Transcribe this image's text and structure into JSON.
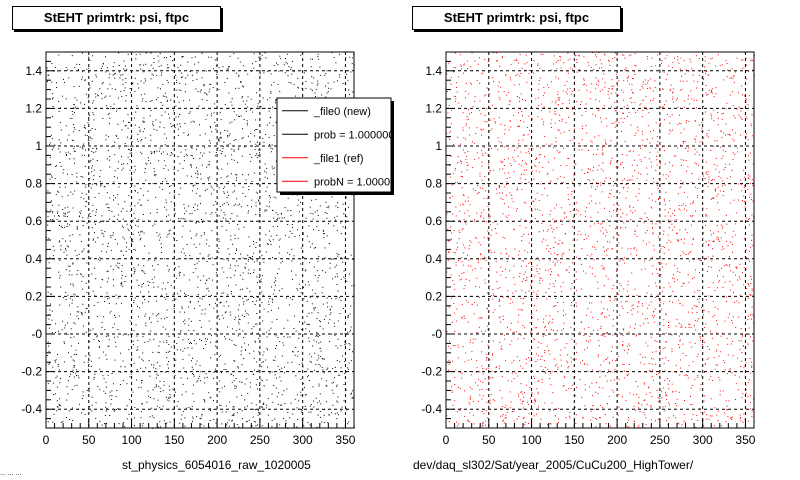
{
  "charts": [
    {
      "title": "StEHT primtrk: psi, ftpc",
      "file_label": "st_physics_6054016_raw_1020005"
    },
    {
      "title": "StEHT primtrk: psi, ftpc",
      "file_label": "dev/daq_sl302/Sat/year_2005/CuCu200_HighTower/"
    }
  ],
  "legend": {
    "entries": [
      {
        "label": "_file0 (new)",
        "color": "#000000"
      },
      {
        "label": "prob = 1.000000",
        "color": "#000000"
      },
      {
        "label": "_file1 (ref)",
        "color": "#ff0000"
      },
      {
        "label": "probN = 1.000000",
        "color": "#ff0000"
      }
    ]
  },
  "footer_stamp": "... ... ...",
  "chart_data": [
    {
      "type": "scatter",
      "title": "StEHT primtrk: psi, ftpc",
      "xlabel": "st_physics_6054016_raw_1020005",
      "ylabel": "",
      "xlim": [
        0,
        360
      ],
      "ylim": [
        -0.5,
        1.5
      ],
      "x_ticks": [
        0,
        50,
        100,
        150,
        200,
        250,
        300,
        350
      ],
      "y_ticks": [
        -0.4,
        -0.2,
        0,
        0.2,
        0.4,
        0.6,
        0.8,
        1,
        1.2,
        1.4
      ],
      "y_tick_labels": [
        "-0.4",
        "-0.2",
        "-0",
        "0.2",
        "0.4",
        "0.6",
        "0.8",
        "1",
        "1.2",
        "1.4"
      ],
      "grid": true,
      "point_color": "#000000",
      "distribution": "approximately uniform random points over x 0–360, y -0.5–1.5",
      "point_count_estimate": 3000,
      "legend_position": "top-right"
    },
    {
      "type": "scatter",
      "title": "StEHT primtrk: psi, ftpc",
      "xlabel": "dev/daq_sl302/Sat/year_2005/CuCu200_HighTower/",
      "ylabel": "",
      "xlim": [
        0,
        360
      ],
      "ylim": [
        -0.5,
        1.5
      ],
      "x_ticks": [
        0,
        50,
        100,
        150,
        200,
        250,
        300,
        350
      ],
      "y_ticks": [
        -0.4,
        -0.2,
        0,
        0.2,
        0.4,
        0.6,
        0.8,
        1,
        1.2,
        1.4
      ],
      "y_tick_labels": [
        "-0.4",
        "-0.2",
        "-0",
        "0.2",
        "0.4",
        "0.6",
        "0.8",
        "1",
        "1.2",
        "1.4"
      ],
      "grid": true,
      "point_color": "#ff0000",
      "distribution": "approximately uniform random points over x 0–360, y -0.5–1.5",
      "point_count_estimate": 3000
    }
  ]
}
